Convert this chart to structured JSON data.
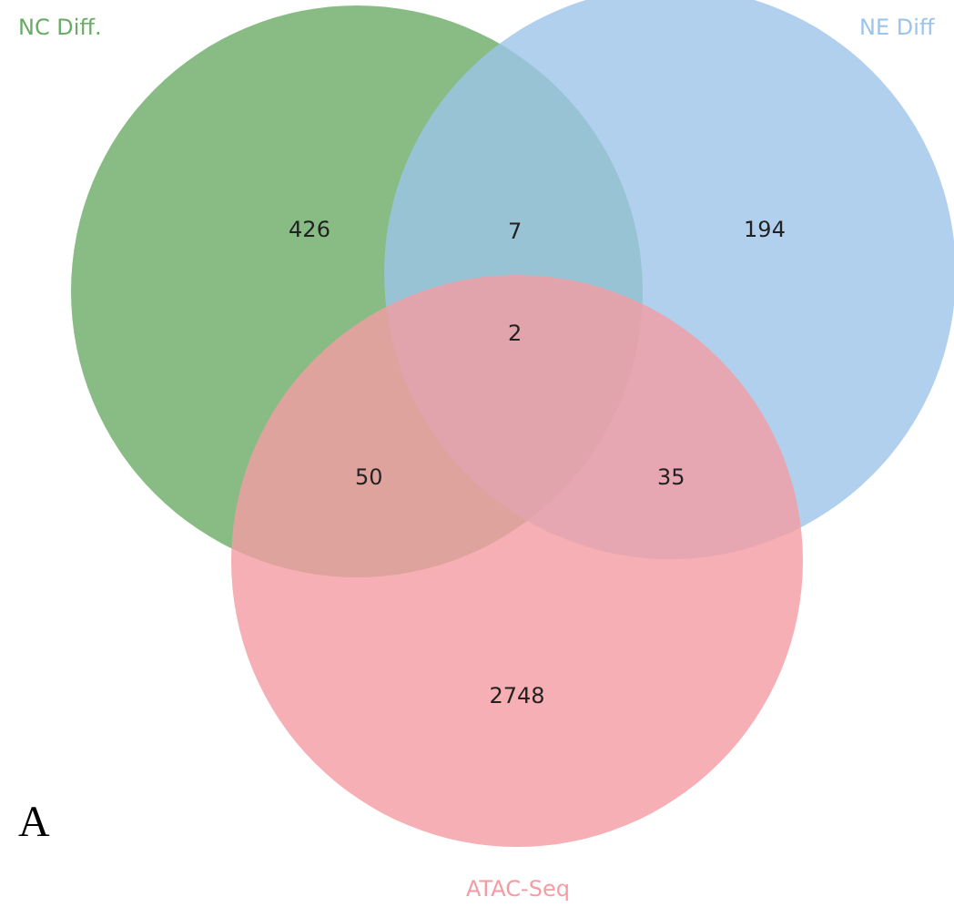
{
  "chart_data": {
    "type": "other",
    "categories": [
      "NC Diff.",
      "NE Diff",
      "ATAC-Seq"
    ],
    "values": [
      426,
      194,
      2748
    ],
    "colors": [
      "#6aab65",
      "#9cc4ea",
      "#f49ca3"
    ],
    "data_labels": true,
    "annotations": [
      "7",
      "50",
      "2",
      "35",
      "A"
    ]
  }
}
